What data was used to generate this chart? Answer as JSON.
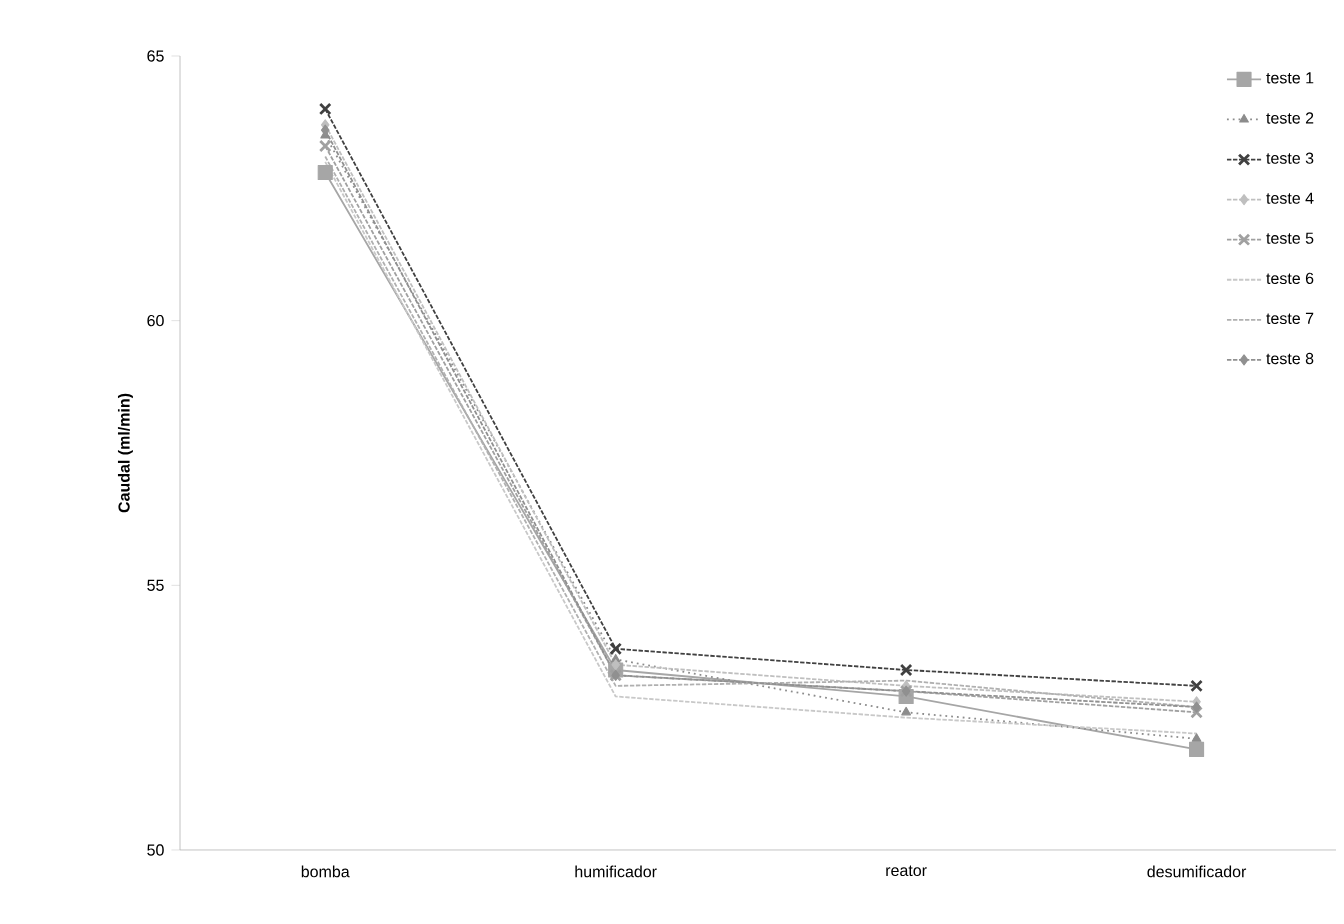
{
  "chart_data": {
    "type": "line",
    "ylabel": "Caudal (ml/min)",
    "categories": [
      "bomba",
      "humificador",
      "reator",
      "desumificador"
    ],
    "ylim": [
      50,
      65
    ],
    "yticks": [
      50,
      55,
      60,
      65
    ],
    "legend": "top right",
    "grid": false,
    "series": [
      {
        "name": "teste 1",
        "color": "#a6a6a6",
        "marker": "square",
        "line_style": "solid",
        "values": [
          62.8,
          53.4,
          52.9,
          51.9
        ]
      },
      {
        "name": "teste 2",
        "color": "#8c8c8c",
        "marker": "triangle",
        "line_style": "dotted",
        "values": [
          63.5,
          53.6,
          52.6,
          52.1
        ]
      },
      {
        "name": "teste 3",
        "color": "#404040",
        "marker": "cross",
        "line_style": "dashed",
        "values": [
          64.0,
          53.8,
          53.4,
          53.1
        ]
      },
      {
        "name": "teste 4",
        "color": "#bfbfbf",
        "marker": "diamond",
        "line_style": "dashed",
        "values": [
          63.7,
          53.5,
          53.1,
          52.8
        ]
      },
      {
        "name": "teste 5",
        "color": "#a0a0a0",
        "marker": "cross",
        "line_style": "dashed",
        "values": [
          63.3,
          53.3,
          53.0,
          52.6
        ]
      },
      {
        "name": "teste 6",
        "color": "#c8c8c8",
        "marker": "none",
        "line_style": "dashed",
        "values": [
          63.0,
          52.9,
          52.5,
          52.2
        ]
      },
      {
        "name": "teste 7",
        "color": "#b0b0b0",
        "marker": "none",
        "line_style": "dashed",
        "values": [
          63.1,
          53.1,
          53.2,
          52.7
        ]
      },
      {
        "name": "teste 8",
        "color": "#909090",
        "marker": "diamond",
        "line_style": "dashed",
        "values": [
          63.6,
          53.3,
          53.0,
          52.7
        ]
      }
    ]
  }
}
